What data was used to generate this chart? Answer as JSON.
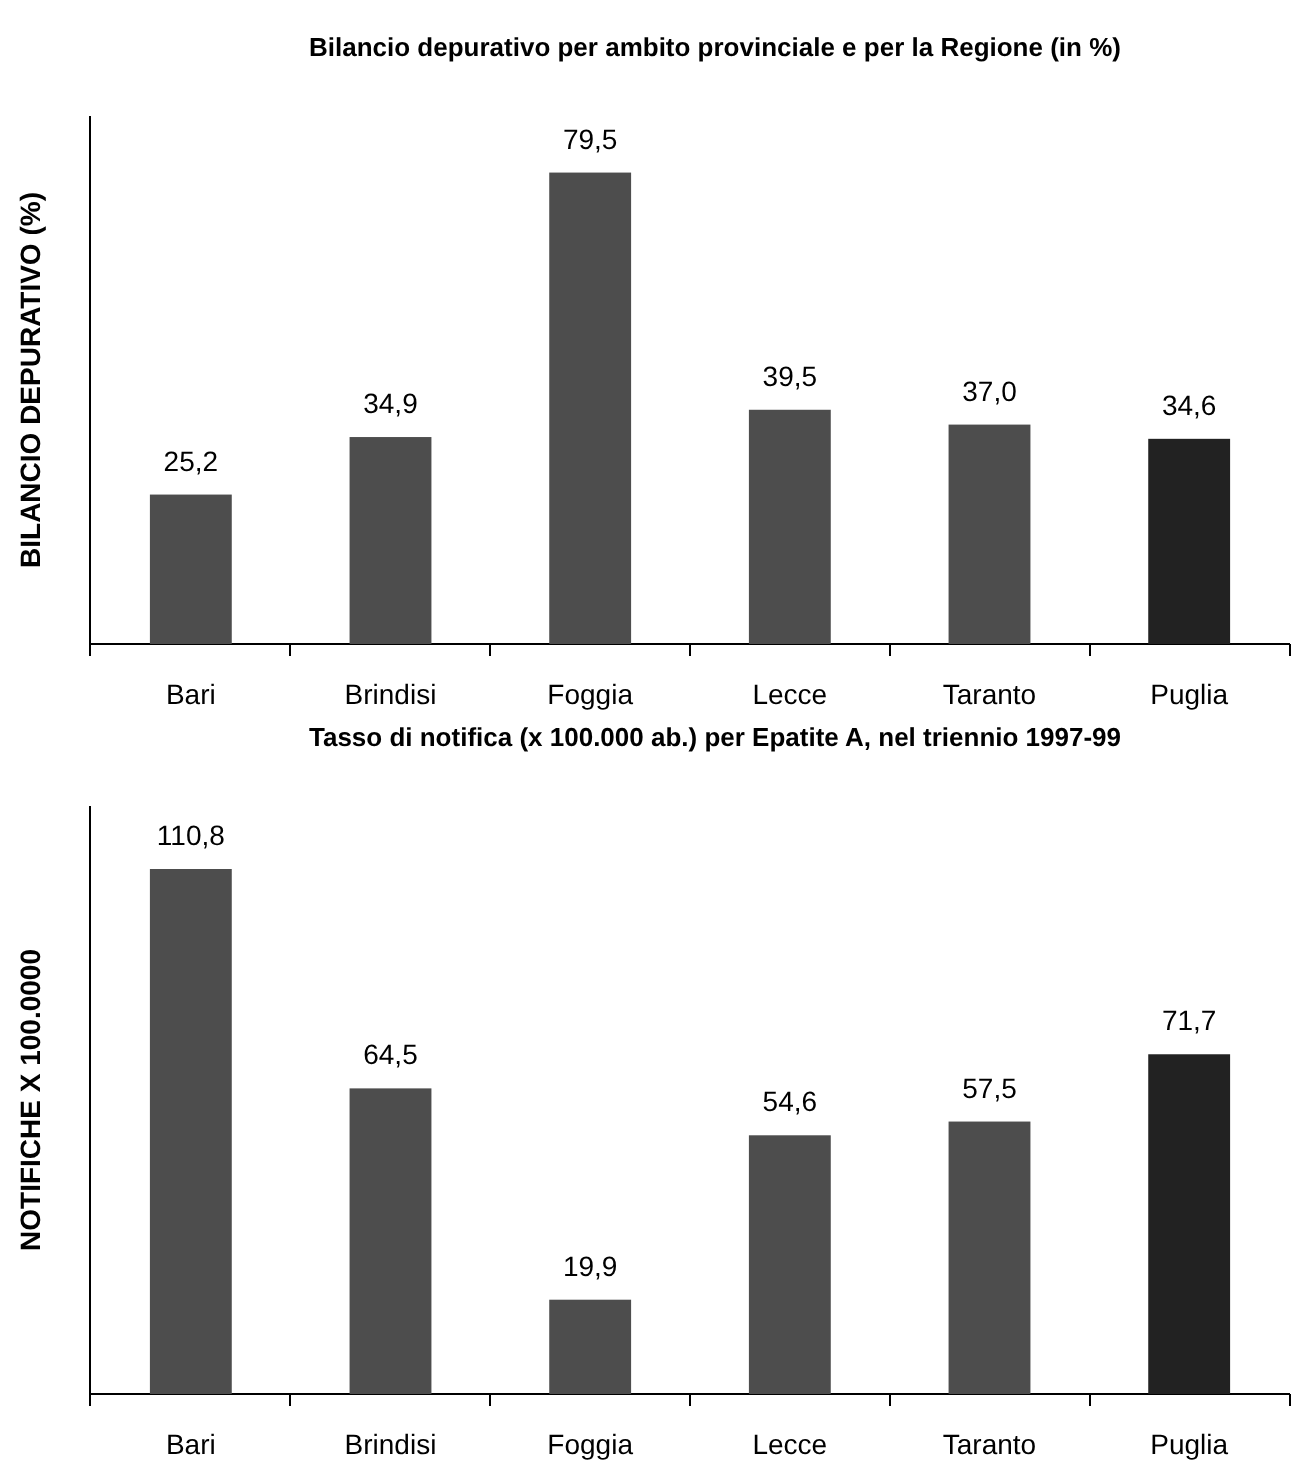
{
  "chart_data": [
    {
      "type": "bar",
      "title": "Bilancio depurativo per ambito provinciale e per la Regione (in %)",
      "ylabel": "BILANCIO DEPURATIVO (%)",
      "categories": [
        "Bari",
        "Brindisi",
        "Foggia",
        "Lecce",
        "Taranto",
        "Puglia"
      ],
      "values": [
        25.2,
        34.9,
        79.5,
        39.5,
        37.0,
        34.6
      ],
      "value_labels": [
        "25,2",
        "34,9",
        "79,5",
        "39,5",
        "37,0",
        "34,6"
      ],
      "colors": [
        "#4d4d4d",
        "#4d4d4d",
        "#4d4d4d",
        "#4d4d4d",
        "#4d4d4d",
        "#222222"
      ]
    },
    {
      "type": "bar",
      "title": "Tasso di notifica (x 100.000 ab.) per Epatite A, nel triennio 1997-99",
      "ylabel": "NOTIFICHE  X  100.0000",
      "categories": [
        "Bari",
        "Brindisi",
        "Foggia",
        "Lecce",
        "Taranto",
        "Puglia"
      ],
      "values": [
        110.8,
        64.5,
        19.9,
        54.6,
        57.5,
        71.7
      ],
      "value_labels": [
        "110,8",
        "64,5",
        "19,9",
        "54,6",
        "57,5",
        "71,7"
      ],
      "colors": [
        "#4d4d4d",
        "#4d4d4d",
        "#4d4d4d",
        "#4d4d4d",
        "#4d4d4d",
        "#222222"
      ]
    }
  ]
}
